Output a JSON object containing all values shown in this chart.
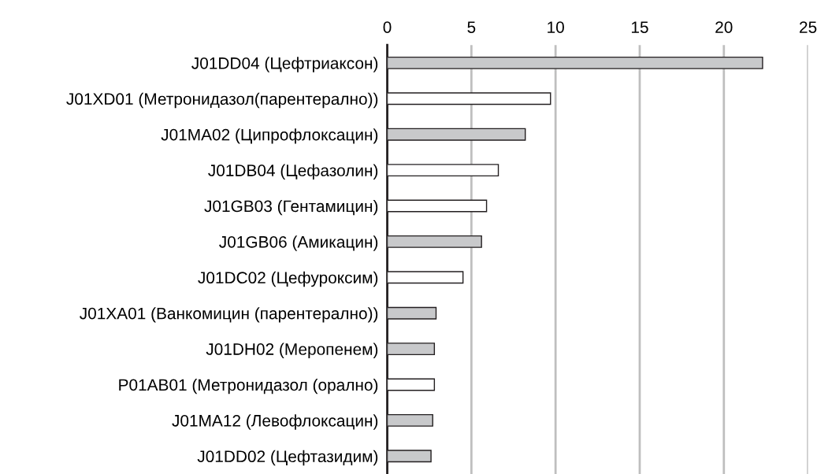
{
  "chart_data": {
    "type": "bar",
    "orientation": "horizontal",
    "categories": [
      "J01DD04 (Цефтриаксон)",
      "J01XD01 (Метронидазол(парентерално))",
      "J01MA02 (Ципрофлоксацин)",
      "J01DB04 (Цефазолин)",
      "J01GB03 (Гентамицин)",
      "J01GB06 (Амикацин)",
      "J01DC02 (Цефуроксим)",
      "J01XA01 (Ванкомицин (парентерално))",
      "J01DH02 (Меропенем)",
      "P01AB01 (Метронидазол (орално)",
      "J01MA12 (Левофлоксацин)",
      "J01DD02 (Цефтазидим)"
    ],
    "values": [
      22.3,
      9.7,
      8.2,
      6.6,
      5.9,
      5.6,
      4.5,
      2.9,
      2.8,
      2.8,
      2.7,
      2.6
    ],
    "colors": [
      "#c8c9cb",
      "#ffffff",
      "#c8c9cb",
      "#ffffff",
      "#ffffff",
      "#c8c9cb",
      "#ffffff",
      "#c8c9cb",
      "#c8c9cb",
      "#ffffff",
      "#c8c9cb",
      "#c8c9cb"
    ],
    "xlim": [
      0,
      25
    ],
    "xticks": [
      0,
      5,
      10,
      15,
      20,
      25
    ],
    "grid": "x"
  }
}
